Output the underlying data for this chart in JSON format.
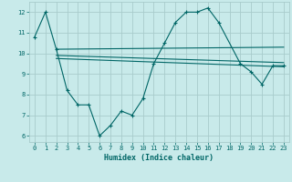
{
  "xlabel": "Humidex (Indice chaleur)",
  "bg_color": "#c8eaea",
  "grid_color": "#a8cccc",
  "line_color": "#006666",
  "ylim": [
    5.7,
    12.5
  ],
  "xlim": [
    -0.5,
    23.5
  ],
  "yticks": [
    6,
    7,
    8,
    9,
    10,
    11,
    12
  ],
  "xticks": [
    0,
    1,
    2,
    3,
    4,
    5,
    6,
    7,
    8,
    9,
    10,
    11,
    12,
    13,
    14,
    15,
    16,
    17,
    18,
    19,
    20,
    21,
    22,
    23
  ],
  "line1_x": [
    0,
    1,
    2,
    3,
    4,
    5,
    6,
    7,
    8,
    9,
    10,
    11,
    12,
    13,
    14,
    15,
    16,
    17,
    19,
    20,
    21,
    22,
    23
  ],
  "line1_y": [
    10.8,
    12.0,
    10.2,
    8.2,
    7.5,
    7.5,
    6.0,
    6.5,
    7.2,
    7.0,
    7.8,
    9.5,
    10.5,
    11.5,
    12.0,
    12.0,
    12.2,
    11.5,
    9.5,
    9.1,
    8.5,
    9.4,
    9.4
  ],
  "line2_x": [
    2,
    23
  ],
  "line2_y": [
    10.2,
    10.3
  ],
  "line3_x": [
    2,
    23
  ],
  "line3_y": [
    9.9,
    9.55
  ],
  "line4_x": [
    2,
    23
  ],
  "line4_y": [
    9.75,
    9.35
  ]
}
